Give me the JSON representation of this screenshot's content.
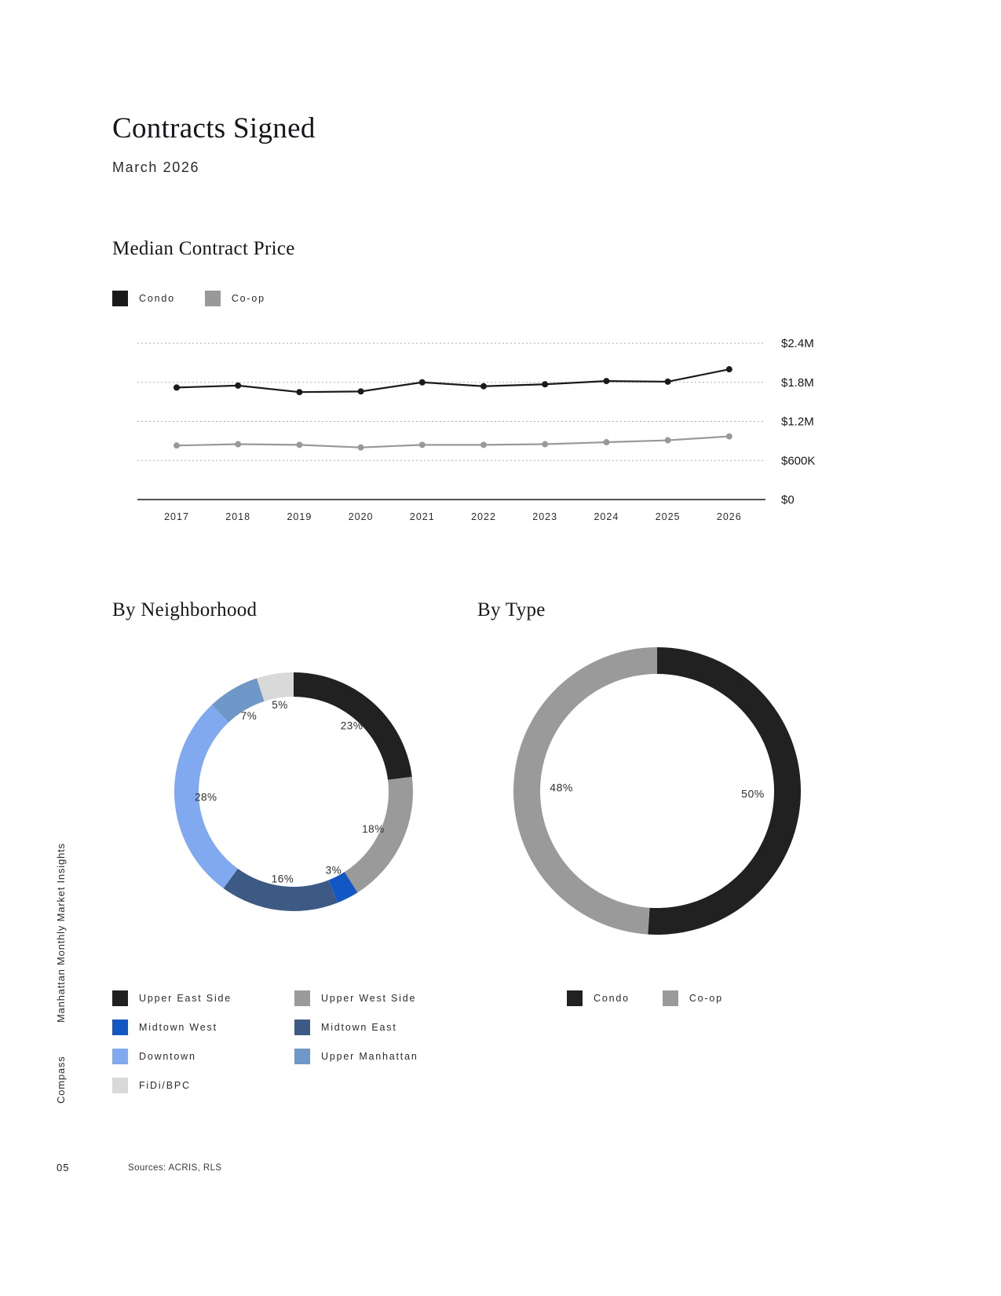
{
  "page": {
    "title": "Contracts Signed",
    "subtitle": "March 2026",
    "vertical_label": "Manhattan Monthly Market Insights",
    "brand": "Compass",
    "page_number": "05",
    "sources": "Sources: ACRIS, RLS"
  },
  "chart_data": [
    {
      "type": "line",
      "title": "Median Contract Price",
      "x": [
        2017,
        2018,
        2019,
        2020,
        2021,
        2022,
        2023,
        2024,
        2025,
        2026
      ],
      "series": [
        {
          "name": "Condo",
          "color": "#1a1a1a",
          "values": [
            1720000,
            1750000,
            1650000,
            1660000,
            1800000,
            1740000,
            1770000,
            1820000,
            1810000,
            2000000
          ]
        },
        {
          "name": "Co-op",
          "color": "#999999",
          "values": [
            830000,
            850000,
            840000,
            800000,
            840000,
            840000,
            850000,
            880000,
            910000,
            970000
          ]
        }
      ],
      "ylim": [
        0,
        2400000
      ],
      "yticks": [
        {
          "value": 2400000,
          "label": "$2.4M"
        },
        {
          "value": 1800000,
          "label": "$1.8M"
        },
        {
          "value": 1200000,
          "label": "$1.2M"
        },
        {
          "value": 600000,
          "label": "$600K"
        },
        {
          "value": 0,
          "label": "$0"
        }
      ],
      "grid": "dashed-horizontal",
      "legend_position": "top-left"
    },
    {
      "type": "pie",
      "variant": "donut",
      "title": "By Neighborhood",
      "segments": [
        {
          "label": "Upper East Side",
          "value": 23,
          "color": "#212121"
        },
        {
          "label": "Upper West Side",
          "value": 18,
          "color": "#9a9a9a"
        },
        {
          "label": "Midtown West",
          "value": 3,
          "color": "#1357c4"
        },
        {
          "label": "Midtown East",
          "value": 16,
          "color": "#3d5a84"
        },
        {
          "label": "Downtown",
          "value": 28,
          "color": "#80a9ef"
        },
        {
          "label": "Upper Manhattan",
          "value": 7,
          "color": "#6f97c7"
        },
        {
          "label": "FiDi/BPC",
          "value": 5,
          "color": "#d9d9d9"
        }
      ],
      "legend_columns": [
        [
          "Upper East Side",
          "Midtown West",
          "Downtown",
          "FiDi/BPC"
        ],
        [
          "Upper West Side",
          "Midtown East",
          "Upper Manhattan"
        ]
      ]
    },
    {
      "type": "pie",
      "variant": "donut",
      "title": "By Type",
      "segments": [
        {
          "label": "Condo",
          "value": 50,
          "color": "#212121"
        },
        {
          "label": "Co-op",
          "value": 48,
          "color": "#9a9a9a"
        }
      ],
      "legend_columns": [
        [
          "Condo",
          "Co-op"
        ]
      ]
    }
  ]
}
